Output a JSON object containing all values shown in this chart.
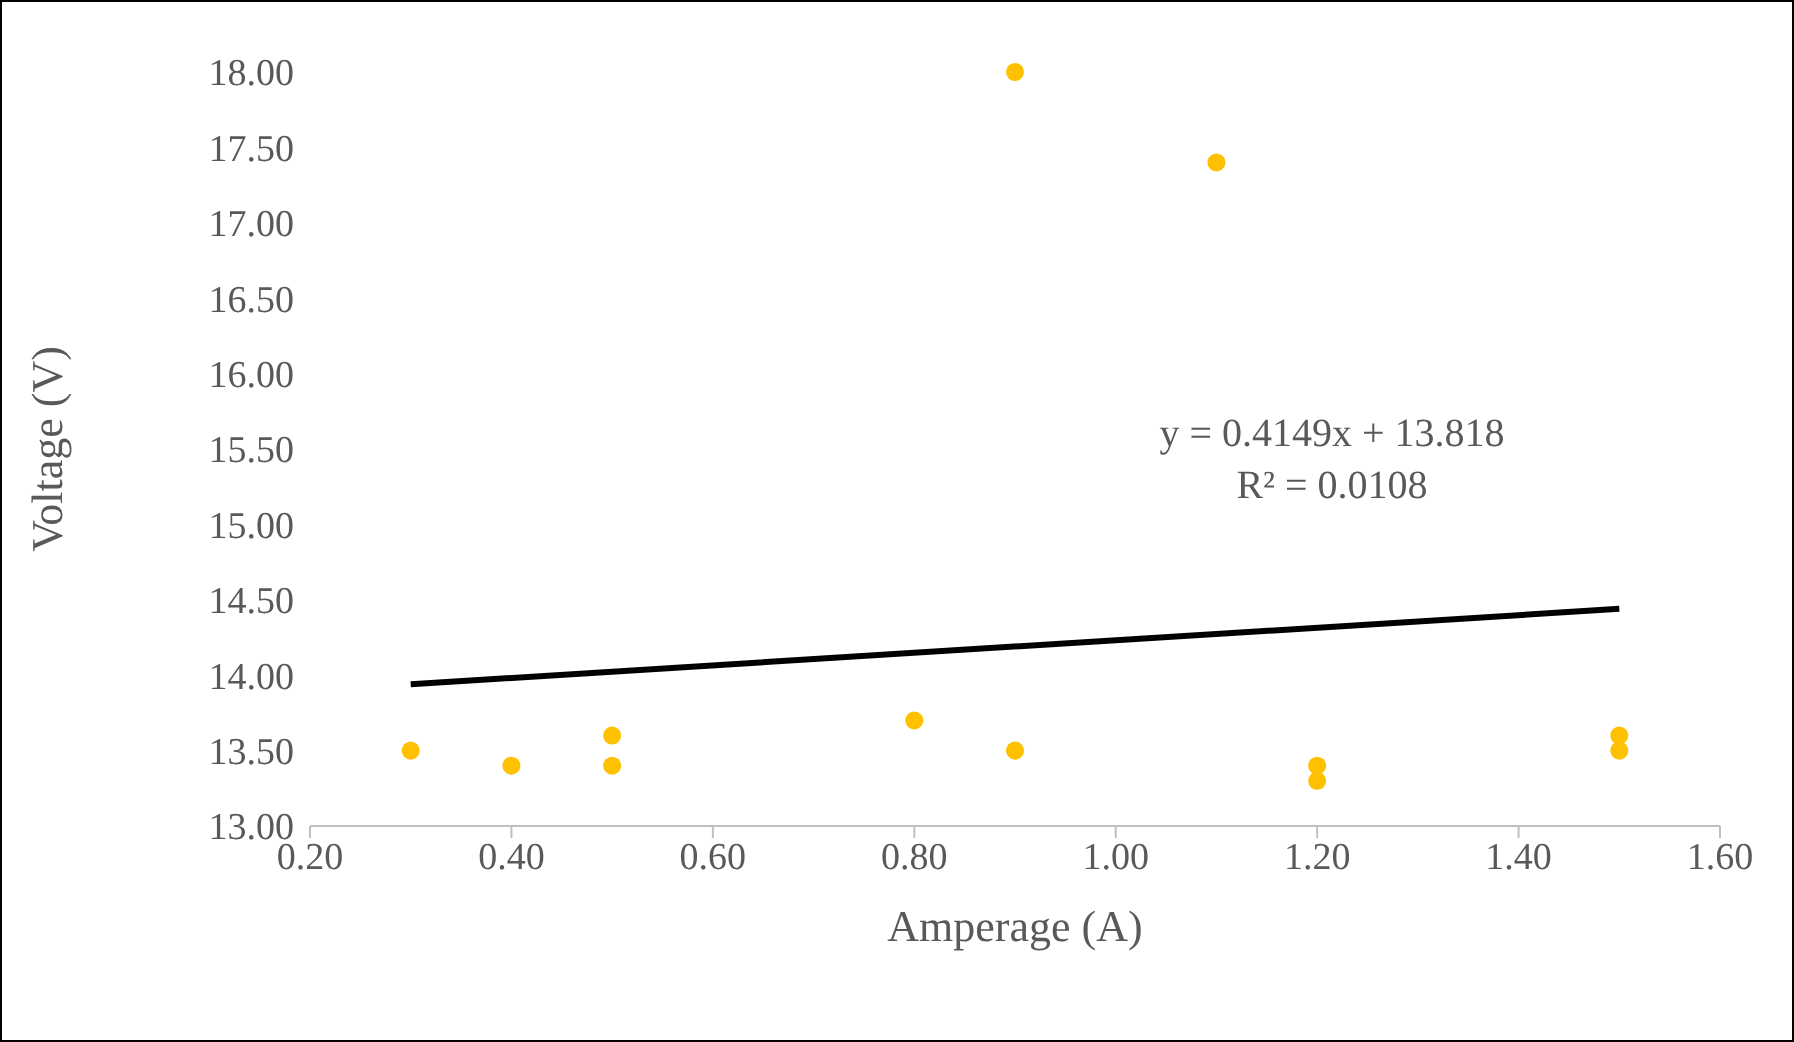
{
  "chart_data": {
    "type": "scatter",
    "xlabel": "Amperage (A)",
    "ylabel": "Voltage (V)",
    "xlim": [
      0.2,
      1.6
    ],
    "xticks": [
      {
        "value": 0.2,
        "label": "0.20"
      },
      {
        "value": 0.4,
        "label": "0.40"
      },
      {
        "value": 0.6,
        "label": "0.60"
      },
      {
        "value": 0.8,
        "label": "0.80"
      },
      {
        "value": 1.0,
        "label": "1.00"
      },
      {
        "value": 1.2,
        "label": "1.20"
      },
      {
        "value": 1.4,
        "label": "1.40"
      },
      {
        "value": 1.6,
        "label": "1.60"
      }
    ],
    "ylim": [
      13,
      18
    ],
    "yticks": [
      {
        "value": 13,
        "label": "13.00"
      },
      {
        "value": 13.5,
        "label": "13.50"
      },
      {
        "value": 14,
        "label": "14.00"
      },
      {
        "value": 14.5,
        "label": "14.50"
      },
      {
        "value": 15,
        "label": "15.00"
      },
      {
        "value": 15.5,
        "label": "15.50"
      },
      {
        "value": 16,
        "label": "16.00"
      },
      {
        "value": 16.5,
        "label": "16.50"
      },
      {
        "value": 17,
        "label": "17.00"
      },
      {
        "value": 17.5,
        "label": "17.50"
      },
      {
        "value": 18,
        "label": "18.00"
      }
    ],
    "grid": false,
    "marker": "circle",
    "annotations": [
      "y = 0.4149x + 13.818",
      "R² = 0.0108"
    ],
    "series": [
      {
        "type": "scatter",
        "color": "#ffc000",
        "x": [
          0.3,
          0.4,
          0.5,
          0.5,
          0.8,
          0.9,
          0.9,
          1.1,
          1.2,
          1.2,
          1.5,
          1.5
        ],
        "values": [
          13.5,
          13.4,
          13.6,
          13.4,
          13.7,
          13.5,
          18.0,
          17.4,
          13.4,
          13.3,
          13.6,
          13.5
        ]
      },
      {
        "type": "line",
        "color": "#000000",
        "line_style": "solid",
        "marker": "none",
        "x": [
          0.3,
          1.5
        ],
        "values": [
          13.94,
          14.44
        ]
      }
    ]
  }
}
